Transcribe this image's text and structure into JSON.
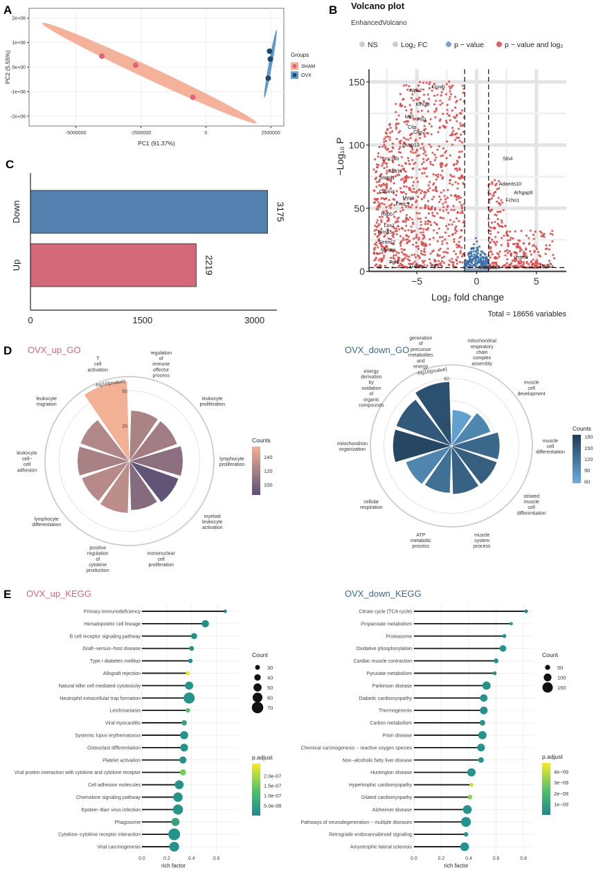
{
  "chart_data": [
    {
      "panel": "A",
      "type": "scatter",
      "xlabel": "PC1 (91.37%)",
      "ylabel": "PC2 (5.55%)",
      "xlim": [
        -6800000,
        3000000
      ],
      "ylim": [
        -2400000,
        2400000
      ],
      "xticks": [
        -5000000,
        -2500000,
        0,
        2500000
      ],
      "xtick_labels": [
        "-5000000",
        "-2500000",
        "0",
        "2500000"
      ],
      "yticks": [
        -2000000,
        -1000000,
        0,
        1000000,
        2000000
      ],
      "ytick_labels": [
        "-2e+06",
        "-1e+06",
        "0e+00",
        "1e+06",
        "2e+06"
      ],
      "legend_title": "Groups",
      "series": [
        {
          "name": "SHAM",
          "color": "#f2a488",
          "point_color": "#e06377",
          "points": [
            [
              -4000000,
              450000
            ],
            [
              -2700000,
              80000
            ],
            [
              -500000,
              -1230000
            ]
          ]
        },
        {
          "name": "OVX",
          "color": "#4a90c8",
          "point_color": "#1f4a6e",
          "points": [
            [
              2450000,
              650000
            ],
            [
              2480000,
              330000
            ],
            [
              2400000,
              -450000
            ]
          ]
        }
      ]
    },
    {
      "panel": "B",
      "type": "scatter",
      "title": "Volcano plot",
      "subtitle": "EnhancedVolcano",
      "xlabel": "Log₂ fold change",
      "ylabel": "−Log₁₀ P",
      "xlim": [
        -9,
        7.5
      ],
      "ylim": [
        0,
        160
      ],
      "xticks": [
        -5,
        0,
        5
      ],
      "yticks": [
        0,
        50,
        100,
        150
      ],
      "legend": [
        "NS",
        "Log₂ FC",
        "p − value",
        "p − value and log₂"
      ],
      "legend_colors": [
        "#cccccc",
        "#cccccc",
        "#7f9fc4",
        "#e06060"
      ],
      "fc_cutoff": [
        -1,
        1
      ],
      "p_cutoff": 3,
      "total_label": "Total = 18656 variables",
      "gene_labels": [
        {
          "t": "Cryab",
          "x": -3.2,
          "y": 145
        },
        {
          "t": "Alpk2",
          "x": -5.1,
          "y": 142
        },
        {
          "t": "Klhl38",
          "x": -4.5,
          "y": 131
        },
        {
          "t": "Mif1",
          "x": -5.6,
          "y": 121
        },
        {
          "t": "Fhl1",
          "x": -4.6,
          "y": 119
        },
        {
          "t": "Cilp",
          "x": -5.4,
          "y": 113
        },
        {
          "t": "Cap2",
          "x": -4.8,
          "y": 109
        },
        {
          "t": "Dusp13",
          "x": -5.5,
          "y": 99
        },
        {
          "t": "Lrrc14b",
          "x": -7.2,
          "y": 88
        },
        {
          "t": "Asb14",
          "x": -6.8,
          "y": 78
        },
        {
          "t": "Smtnl1",
          "x": -7.5,
          "y": 73
        },
        {
          "t": "Cavin4",
          "x": -7.5,
          "y": 62
        },
        {
          "t": "Myoc",
          "x": -5.7,
          "y": 57
        },
        {
          "t": "Fndc5",
          "x": -6.2,
          "y": 52
        },
        {
          "t": "Hspb7",
          "x": -7.4,
          "y": 44
        },
        {
          "t": "Lox1",
          "x": -7.3,
          "y": 35
        },
        {
          "t": "Trim55",
          "x": -7.7,
          "y": 30
        },
        {
          "t": "Serinc2",
          "x": -7.5,
          "y": 22
        },
        {
          "t": "Mybpc",
          "x": -7.4,
          "y": 16
        },
        {
          "t": "Fgf6",
          "x": -6.9,
          "y": 6
        },
        {
          "t": "Gabrg1",
          "x": -4.9,
          "y": 3
        },
        {
          "t": "Elf3",
          "x": -3.5,
          "y": 3
        },
        {
          "t": "Sln4",
          "x": 2.6,
          "y": 88
        },
        {
          "t": "Adamts10",
          "x": 2.8,
          "y": 68
        },
        {
          "t": "Arhgap9",
          "x": 3.9,
          "y": 61
        },
        {
          "t": "Fcho1",
          "x": 3.0,
          "y": 55
        },
        {
          "t": "Lrrtm4",
          "x": 3.7,
          "y": 10
        },
        {
          "t": "Prok2",
          "x": 5.8,
          "y": 3
        },
        {
          "t": "Slc22a18",
          "x": 1.1,
          "y": 2
        }
      ]
    },
    {
      "panel": "C",
      "type": "bar",
      "orientation": "horizontal",
      "categories": [
        "Down",
        "Up"
      ],
      "values": [
        3175,
        2219
      ],
      "colors": [
        "#5480b0",
        "#d4697c"
      ],
      "xlim": [
        0,
        3300
      ],
      "xticks": [
        0,
        1500,
        3000
      ]
    },
    {
      "panel": "D-left",
      "type": "bar",
      "subtype": "polar",
      "title": "OVX_up_GO",
      "radial_label": "-log10(pvalue)",
      "radial_ticks": [
        25,
        50
      ],
      "rmax": 60,
      "legend_title": "Counts",
      "legend_ticks": [
        100,
        120,
        140
      ],
      "color_range": [
        85,
        155
      ],
      "color_low": "#5a5075",
      "color_high": "#f2b094",
      "categories": [
        "regulation of immune effector process",
        "leukocyte proliferation",
        "lymphocyte proliferation",
        "myeloid leukocyte activation",
        "mononuclear cell proliferation",
        "positive regulation of cytokine production",
        "lymphocyte differentiation",
        "leukocyte cell-cell adhesion",
        "leukocyte migration",
        "T cell activation"
      ],
      "category_lines": [
        [
          "regulation",
          "of",
          "immune",
          "effector",
          "process"
        ],
        [
          "leukocyte",
          "proliferation"
        ],
        [
          "lymphocyte",
          "proliferation"
        ],
        [
          "myeloid",
          "leukocyte",
          "activation"
        ],
        [
          "mononuclear",
          "cell",
          "proliferation"
        ],
        [
          "positive",
          "regulation",
          "of",
          "cytokine",
          "production"
        ],
        [
          "lymphocyte",
          "differentiation"
        ],
        [
          "leukocyte",
          "cell−",
          "cell",
          "adhesion"
        ],
        [
          "leukocyte",
          "migration"
        ],
        [
          "T",
          "cell",
          "activation"
        ]
      ],
      "values": [
        36,
        36,
        38,
        37,
        35,
        37,
        36,
        37,
        37,
        57
      ],
      "counts": [
        122,
        118,
        108,
        88,
        105,
        130,
        127,
        121,
        125,
        155
      ]
    },
    {
      "panel": "D-right",
      "type": "bar",
      "subtype": "polar",
      "title": "OVX_down_GO",
      "radial_label": "-log10(pvalue)",
      "radial_ticks": [
        20,
        40,
        60
      ],
      "rmax": 72,
      "legend_title": "Counts",
      "legend_ticks": [
        60,
        90,
        120,
        150,
        180
      ],
      "color_range": [
        55,
        185
      ],
      "color_low": "#6aaee0",
      "color_high": "#1d3a54",
      "categories": [
        "mitochondrial respiratory chain complex assembly",
        "muscle cell development",
        "muscle cell differentiation",
        "striated muscle cell differentiation",
        "muscle system process",
        "ATP metabolic process",
        "cellular respiration",
        "mitochondrion organization",
        "energy derivation by oxidation of organic compounds",
        "generation of precursor metabolites and energy"
      ],
      "category_lines": [
        [
          "mitochondrial",
          "respiratory",
          "chain",
          "complex",
          "assembly"
        ],
        [
          "muscle",
          "cell",
          "development"
        ],
        [
          "muscle",
          "cell",
          "differentiation"
        ],
        [
          "striated",
          "muscle",
          "cell",
          "differentiation"
        ],
        [
          "muscle",
          "system",
          "process"
        ],
        [
          "ATP",
          "metabolic",
          "process"
        ],
        [
          "cellular",
          "respiration"
        ],
        [
          "mitochondrion",
          "organization"
        ],
        [
          "energy",
          "derivation",
          "by",
          "oxidation",
          "of",
          "organic",
          "compounds"
        ],
        [
          "generation",
          "of",
          "precursor",
          "metabolites",
          "and",
          "energy"
        ]
      ],
      "values": [
        32,
        37,
        43,
        43,
        43,
        42,
        43,
        52,
        52,
        57
      ],
      "counts": [
        70,
        100,
        135,
        145,
        140,
        125,
        100,
        170,
        150,
        160
      ]
    },
    {
      "panel": "E-left",
      "type": "scatter",
      "subtype": "lollipop",
      "title": "OVX_up_KEGG",
      "xlabel": "rich factor",
      "xlim": [
        -0.05,
        0.78
      ],
      "xticks": [
        0.0,
        0.2,
        0.4,
        0.6
      ],
      "xtick_labels": [
        "0.0",
        "0.2",
        "0.4",
        "0.6"
      ],
      "size_title": "Count",
      "size_legend": [
        30,
        40,
        50,
        60,
        70
      ],
      "color_title": "p.adjust",
      "color_legend": [
        2e-07,
        1.5e-07,
        1e-07,
        5e-08
      ],
      "color_legend_labels": [
        "2.0e-07",
        "1.5e-07",
        "1.0e-07",
        "5.0e-08"
      ],
      "color_range": [
        0,
        2.6e-07
      ],
      "categories": [
        "Primary immunodeficiency",
        "Hematopoietic cell lineage",
        "B cell receptor signaling pathway",
        "Graft−versus−host disease",
        "Type I diabetes mellitus",
        "Allograft rejection",
        "Natural killer cell mediated cytotoxicity",
        "Neutrophil extracellular trap formation",
        "Leishmaniasis",
        "Viral myocarditis",
        "Systemic lupus erythematosus",
        "Osteoclast differentiation",
        "Platelet activation",
        "Viral protein interaction with cytokine and cytokine receptor",
        "Cell adhesion molecules",
        "Chemokine signaling pathway",
        "Epstein−Barr virus infection",
        "Phagosome",
        "Cytokine−cytokine receptor interaction",
        "Viral carcinogenesis"
      ],
      "values": [
        0.67,
        0.51,
        0.42,
        0.4,
        0.39,
        0.37,
        0.38,
        0.38,
        0.37,
        0.34,
        0.34,
        0.34,
        0.33,
        0.33,
        0.3,
        0.29,
        0.29,
        0.27,
        0.26,
        0.26
      ],
      "counts": [
        22,
        45,
        38,
        30,
        28,
        26,
        50,
        68,
        28,
        34,
        50,
        48,
        44,
        38,
        55,
        58,
        62,
        50,
        72,
        60
      ],
      "p_adjust": [
        1e-08,
        2e-08,
        3e-08,
        3e-08,
        2e-08,
        2.5e-07,
        3e-08,
        3e-08,
        1.2e-07,
        7e-08,
        3e-08,
        3e-08,
        3e-08,
        1.6e-07,
        3e-08,
        3e-08,
        3e-08,
        6e-08,
        3e-08,
        3e-08
      ]
    },
    {
      "panel": "E-right",
      "type": "scatter",
      "subtype": "lollipop",
      "title": "OVX_down_KEGG",
      "xlabel": "rich factor",
      "xlim": [
        -0.05,
        0.87
      ],
      "xticks": [
        0.0,
        0.2,
        0.4,
        0.6,
        0.8
      ],
      "xtick_labels": [
        "0.0",
        "0.2",
        "0.4",
        "0.6",
        "0.8"
      ],
      "size_title": "Count",
      "size_legend": [
        50,
        100,
        150
      ],
      "color_title": "p.adjust",
      "color_legend": [
        4e-09,
        3e-09,
        2e-09,
        1e-09
      ],
      "color_legend_labels": [
        "4e−09",
        "3e−09",
        "2e−09",
        "1e−09"
      ],
      "color_range": [
        0,
        4.8e-09
      ],
      "categories": [
        "Citrate cycle (TCA cycle)",
        "Propanoate metabolism",
        "Proteasome",
        "Oxidative phosphorylation",
        "Cardiac muscle contraction",
        "Pyruvate metabolism",
        "Parkinson disease",
        "Diabetic cardiomyopathy",
        "Thermogenesis",
        "Carbon metabolism",
        "Prion disease",
        "Chemical carcinogenesis − reactive oxygen species",
        "Non−alcoholic fatty liver disease",
        "Huntington disease",
        "Hypertrophic cardiomyopathy",
        "Dilated cardiomyopathy",
        "Alzheimer disease",
        "Pathways of neurodegeneration − multiple diseases",
        "Retrograde endocannabinoid signaling",
        "Amyotrophic lateral sclerosis"
      ],
      "values": [
        0.82,
        0.71,
        0.66,
        0.65,
        0.6,
        0.59,
        0.53,
        0.51,
        0.51,
        0.5,
        0.5,
        0.49,
        0.49,
        0.42,
        0.42,
        0.41,
        0.39,
        0.38,
        0.38,
        0.37
      ],
      "counts": [
        25,
        20,
        30,
        80,
        45,
        25,
        110,
        95,
        100,
        60,
        110,
        100,
        60,
        110,
        30,
        40,
        120,
        140,
        40,
        120
      ],
      "p_adjust": [
        5e-10,
        1e-09,
        5e-10,
        5e-10,
        5e-10,
        5e-10,
        5e-10,
        5e-10,
        5e-10,
        5e-10,
        5e-10,
        5e-10,
        5e-10,
        5e-10,
        4.2e-09,
        3.2e-09,
        5e-10,
        5e-10,
        5e-10,
        5e-10
      ]
    }
  ]
}
